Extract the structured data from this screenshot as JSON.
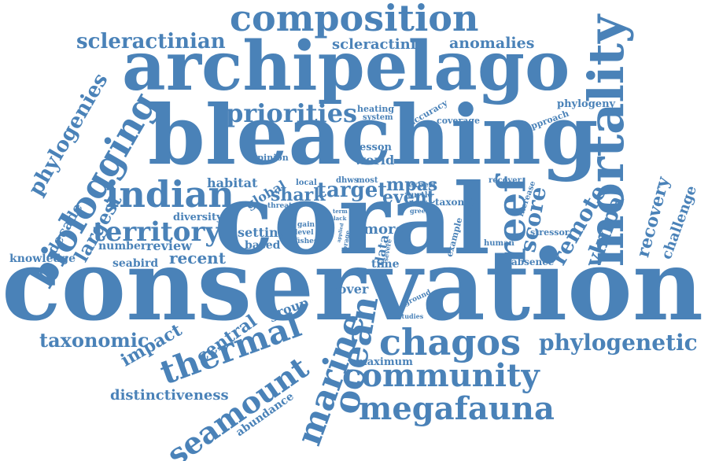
{
  "colors": {
    "word": "#4a82b8",
    "background": "#ffffff"
  },
  "words": [
    "conservation",
    "coral",
    "bleaching",
    "archipelago",
    "mortality",
    "composition",
    "scleractinian",
    "scleractinia",
    "anomalies",
    "biologging",
    "phylogenies",
    "indian",
    "territory",
    "priorities",
    "reef",
    "remote",
    "recovery",
    "challenge",
    "vlmpa",
    "score",
    "chagos",
    "community",
    "megafauna",
    "phylogenetic",
    "thermal",
    "marine",
    "ocean",
    "seamount",
    "taxonomic",
    "impact",
    "central",
    "distinctiveness",
    "abundance",
    "maximum",
    "group",
    "cover",
    "largest",
    "decade",
    "knowledge",
    "number",
    "review",
    "recent",
    "seabird",
    "diversity",
    "habitat",
    "global",
    "shark",
    "target",
    "mpas",
    "event",
    "setting",
    "based",
    "more",
    "data",
    "time",
    "heating",
    "system",
    "accuracy",
    "coverage",
    "phylogeny",
    "approach",
    "lesson",
    "world",
    "opinion",
    "dhws",
    "most",
    "local",
    "expert",
    "turtle",
    "taxon",
    "threat",
    "poor",
    "green",
    "gain",
    "level",
    "fishes",
    "term",
    "lack",
    "forage",
    "applied",
    "severe",
    "potential",
    "increase",
    "recover",
    "example",
    "human",
    "stressor",
    "absence",
    "ground",
    "studies"
  ]
}
